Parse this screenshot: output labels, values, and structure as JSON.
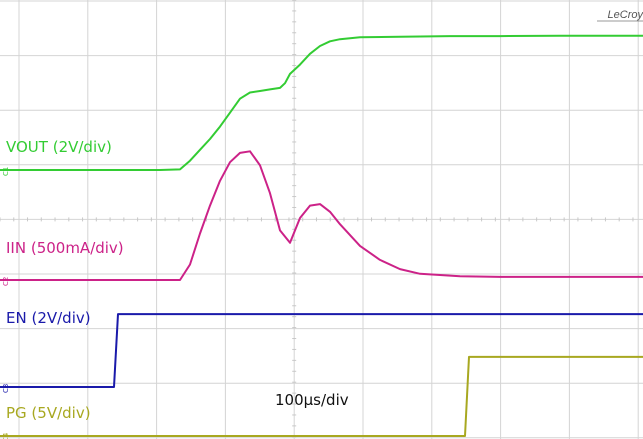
{
  "brand": "LeCroy",
  "time_label": "100µs/div",
  "channels": [
    {
      "name": "vout",
      "label": "VOUT (2V/div)",
      "color": "#33cc33",
      "marker": "C1"
    },
    {
      "name": "iin",
      "label": "IIN (500mA/div)",
      "color": "#cc2288",
      "marker": "C2"
    },
    {
      "name": "en",
      "label": "EN (2V/div)",
      "color": "#1a1aaa",
      "marker": "C3"
    },
    {
      "name": "pg",
      "label": "PG (5V/div)",
      "color": "#a8a820",
      "marker": "C4"
    }
  ],
  "chart_data": {
    "type": "line",
    "xlabel": "100µs/div",
    "series": [
      {
        "name": "VOUT (2V/div)",
        "x": [
          0,
          160,
          180,
          190,
          200,
          210,
          220,
          230,
          240,
          250,
          260,
          270,
          280,
          285,
          290,
          300,
          310,
          320,
          330,
          340,
          360,
          400,
          450,
          500,
          560,
          643
        ],
        "values": [
          0,
          0,
          0.02,
          0.3,
          0.65,
          1.0,
          1.4,
          1.85,
          2.3,
          2.5,
          2.55,
          2.6,
          2.65,
          2.8,
          3.1,
          3.4,
          3.75,
          4.0,
          4.15,
          4.22,
          4.28,
          4.3,
          4.32,
          4.32,
          4.33,
          4.33
        ]
      },
      {
        "name": "IIN (500mA/div)",
        "x": [
          0,
          160,
          180,
          190,
          200,
          210,
          220,
          230,
          240,
          250,
          260,
          270,
          280,
          290,
          300,
          310,
          320,
          330,
          340,
          360,
          380,
          400,
          420,
          460,
          500,
          560,
          643
        ],
        "values": [
          0,
          0,
          0,
          0.5,
          1.5,
          2.4,
          3.2,
          3.8,
          4.1,
          4.15,
          3.7,
          2.8,
          1.6,
          1.2,
          2.0,
          2.4,
          2.45,
          2.2,
          1.8,
          1.1,
          0.65,
          0.35,
          0.2,
          0.12,
          0.1,
          0.1,
          0.1
        ]
      },
      {
        "name": "EN (2V/div)",
        "x": [
          0,
          114,
          118,
          643
        ],
        "values": [
          0,
          0,
          2.35,
          2.35
        ]
      },
      {
        "name": "PG (5V/div)",
        "x": [
          0,
          465,
          469,
          643
        ],
        "values": [
          0,
          0,
          2.55,
          2.55
        ]
      }
    ]
  }
}
